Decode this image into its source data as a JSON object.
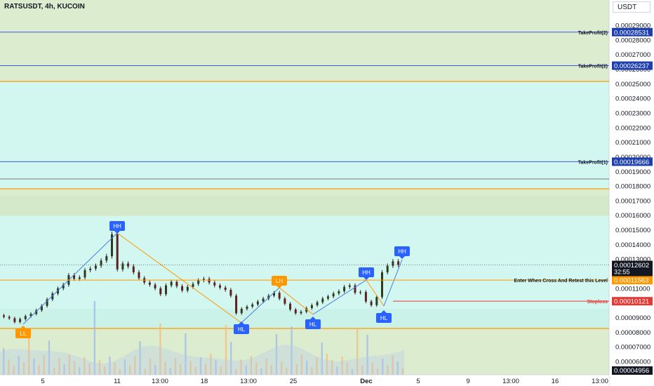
{
  "header": {
    "title": "RATSUSDT, 4h, KUCOIN",
    "currency": "USDT"
  },
  "colors": {
    "zone_green": "#dcedcf",
    "zone_cyan": "#d2f7f0",
    "orange": "#ff9800",
    "blue_line": "#3d5de6",
    "gray_line": "#787b86",
    "red": "#e53935",
    "bull": "#26a69a",
    "bear": "#5d1f1f",
    "wick": "#3a1a1a",
    "vol_orange": "#f5b97a",
    "vol_blue": "#9fb8e6",
    "marker_blue": "#2962ff",
    "marker_orange": "#ff9800"
  },
  "price_axis": {
    "ticks": [
      "0.00029000",
      "0.00028000",
      "0.00027000",
      "0.00026000",
      "0.00025000",
      "0.00024000",
      "0.00023000",
      "0.00022000",
      "0.00021000",
      "0.00020000",
      "0.00019000",
      "0.00018000",
      "0.00017000",
      "0.00016000",
      "0.00015000",
      "0.00014000",
      "0.00013000",
      "0.00011000",
      "0.00009000",
      "0.00008000",
      "0.00007000",
      "0.00006000"
    ]
  },
  "time_axis": {
    "labels": [
      "5",
      "11",
      "13:00",
      "18",
      "13:00",
      "25",
      "Dec",
      "5",
      "9",
      "13:00",
      "16",
      "13:00"
    ]
  },
  "levels": [
    {
      "label": "TakeProfit(2)",
      "price_label": "0.00028531",
      "price": 0.00028531
    },
    {
      "label": "TakeProfit(2)",
      "price_label": "0.00026237",
      "price": 0.00026237
    },
    {
      "label": "TakeProfit(1)",
      "price_label": "0.00019666",
      "price": 0.00019666
    },
    {
      "label": "Enter When Cross And Retest this Level",
      "price_label": "0.00011563",
      "price": 0.00011563
    },
    {
      "label": "Stoploss",
      "price_label": "0.00010121",
      "price": 0.00010121
    }
  ],
  "current_price": {
    "price_label": "0.00012602",
    "countdown": "32:55",
    "price": 0.00012602
  },
  "volume_label": "0.00004956",
  "markers": [
    {
      "text": "LL",
      "kind": "low",
      "color": "orange"
    },
    {
      "text": "HH",
      "kind": "high",
      "color": "blue"
    },
    {
      "text": "HL",
      "kind": "low",
      "color": "blue"
    },
    {
      "text": "LH",
      "kind": "high",
      "color": "orange"
    },
    {
      "text": "HL",
      "kind": "low",
      "color": "blue"
    },
    {
      "text": "HH",
      "kind": "high",
      "color": "blue"
    },
    {
      "text": "HL",
      "kind": "low",
      "color": "blue"
    },
    {
      "text": "HH",
      "kind": "high",
      "color": "blue"
    }
  ],
  "chart_data": {
    "type": "candlestick",
    "title": "RATSUSDT, 4h, KUCOIN",
    "ylim": [
      4.5e-05,
      0.0003
    ],
    "series": [
      {
        "name": "RATSUSDT",
        "close": [
          9.05e-05,
          8.95e-05,
          8.7e-05,
          8.9e-05,
          9.1e-05,
          9.25e-05,
          9.5e-05,
          9.8e-05,
          0.0001025,
          0.0001065,
          0.00011,
          0.0001125,
          0.000119,
          0.0001165,
          0.0001175,
          0.0001225,
          0.0001235,
          0.0001255,
          0.000129,
          0.000132,
          0.000147,
          0.000123,
          0.000127,
          0.000125,
          0.000121,
          0.000117,
          0.000114,
          0.0001125,
          0.00011,
          0.000106,
          0.000112,
          0.0001145,
          0.0001115,
          0.0001085,
          0.000111,
          0.000113,
          0.0001155,
          0.0001165,
          0.000114,
          0.000112,
          0.0001105,
          0.000109,
          0.000105,
          9.3e-05,
          9.6e-05,
          9.75e-05,
          9.9e-05,
          0.000101,
          0.000103,
          0.000105,
          0.000107,
          0.000103,
          9.95e-05,
          9.55e-05,
          9.3e-05,
          9.4e-05,
          9.65e-05,
          9.85e-05,
          0.0001005,
          0.000103,
          0.0001045,
          0.0001065,
          0.000108,
          0.000111,
          0.000112,
          0.000107,
          0.0001075,
          0.000101,
          9.85e-05,
          0.000104,
          0.000121,
          0.0001255,
          0.0001285,
          0.000126
        ]
      }
    ]
  }
}
